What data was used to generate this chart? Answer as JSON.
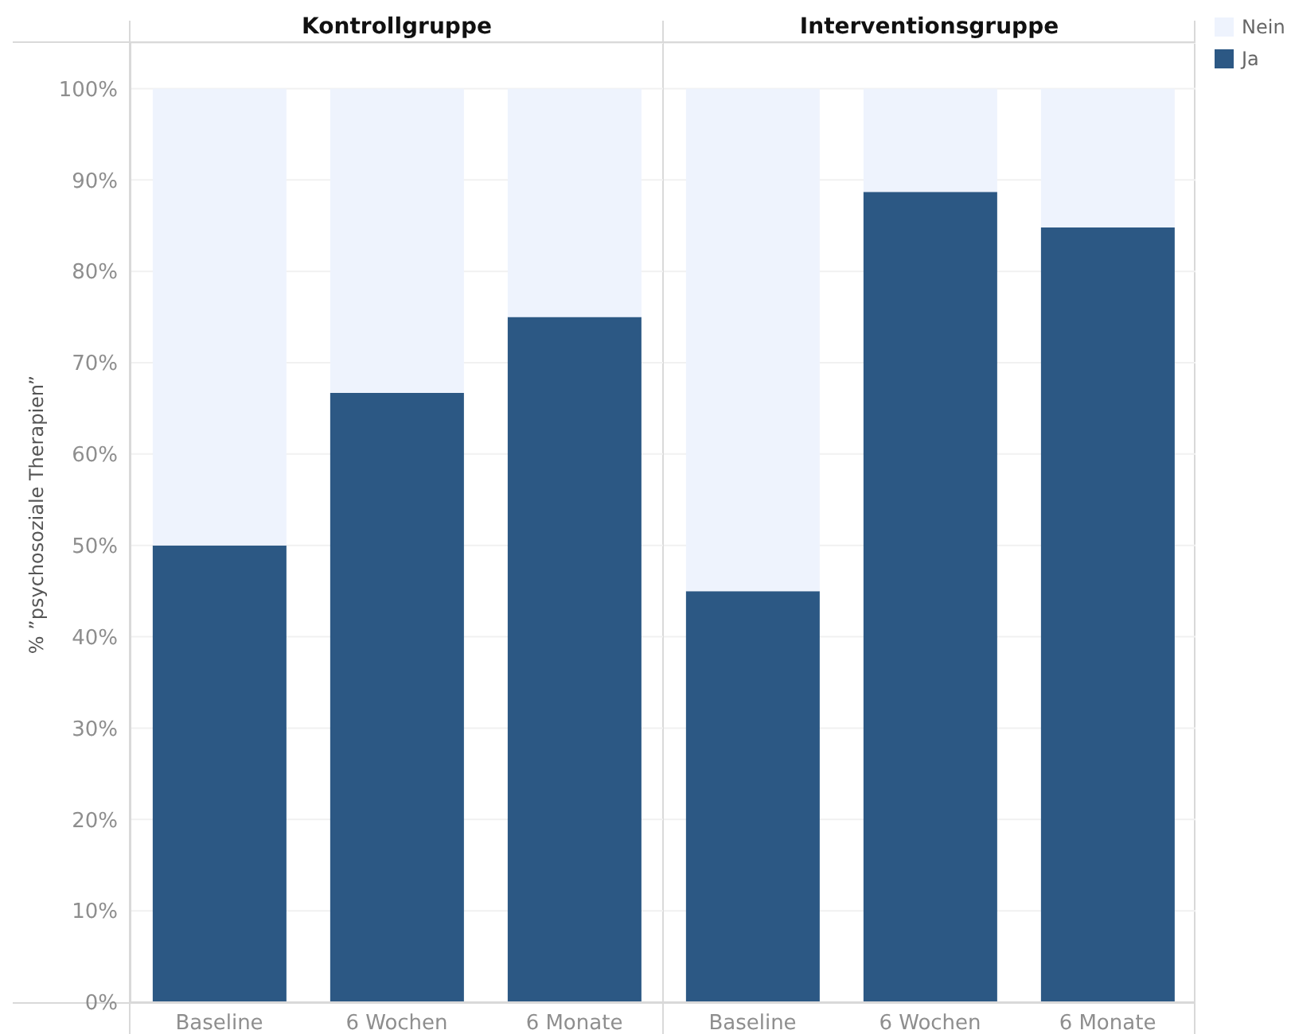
{
  "chart_data": [
    {
      "type": "bar",
      "title": "Kontrollgruppe",
      "ylabel": "% ”psychosoziale Therapien”",
      "categories": [
        "Baseline",
        "6 Wochen",
        "6 Monate"
      ],
      "series": [
        {
          "color": "#2c5884",
          "values": [
            50,
            66.7,
            75
          ]
        },
        {
          "color": "#eef3fd",
          "values": [
            50,
            33.3,
            25
          ]
        }
      ],
      "stacked": true,
      "ylim": [
        0,
        105
      ],
      "yticks": [
        {
          "value": 0,
          "label": "0%"
        },
        {
          "value": 10,
          "label": "10%"
        },
        {
          "value": 20,
          "label": "20%"
        },
        {
          "value": 30,
          "label": "30%"
        },
        {
          "value": 40,
          "label": "40%"
        },
        {
          "value": 50,
          "label": "50%"
        },
        {
          "value": 60,
          "label": "60%"
        },
        {
          "value": 70,
          "label": "70%"
        },
        {
          "value": 80,
          "label": "80%"
        },
        {
          "value": 90,
          "label": "90%"
        },
        {
          "value": 100,
          "label": "100%"
        }
      ],
      "grid": "y"
    },
    {
      "type": "bar",
      "title": "Interventionsgruppe",
      "categories": [
        "Baseline",
        "6 Wochen",
        "6 Monate"
      ],
      "series": [
        {
          "name": "Ja",
          "color": "#2c5884",
          "values": [
            45,
            88.7,
            84.8
          ]
        },
        {
          "name": "Nein",
          "color": "#eef3fd",
          "values": [
            55,
            11.3,
            15.2
          ]
        }
      ],
      "stacked": true,
      "ylim": [
        0,
        105
      ],
      "yticks": [
        0,
        10,
        20,
        30,
        40,
        50,
        60,
        70,
        80,
        90,
        100
      ],
      "grid": "y",
      "legend": "top right",
      "tick_labels": "x"
    }
  ]
}
